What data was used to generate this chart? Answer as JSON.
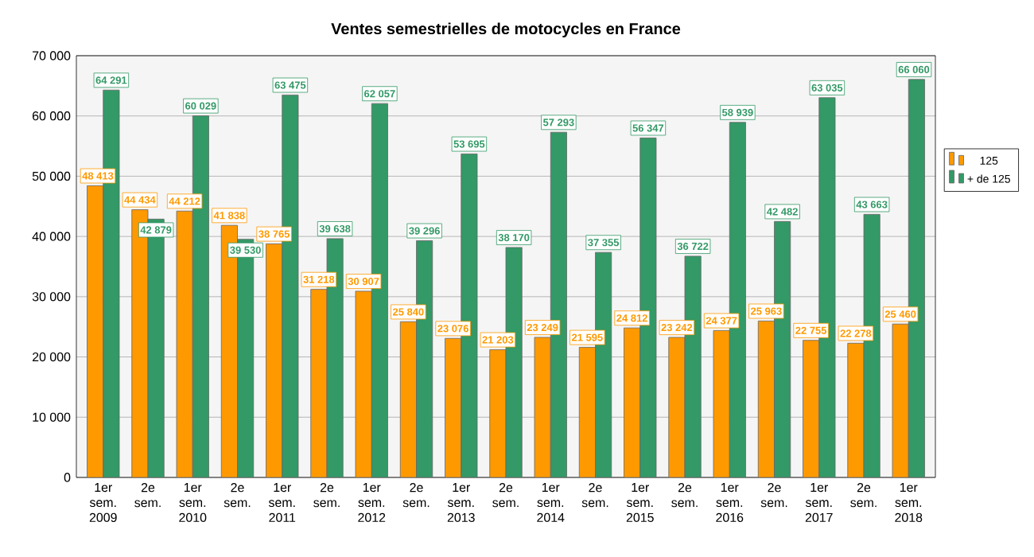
{
  "chart_data": {
    "type": "bar",
    "title": "Ventes semestrielles de motocycles en France",
    "categories": [
      "1er sem. 2009",
      "2e sem.",
      "1er sem. 2010",
      "2e sem.",
      "1er sem. 2011",
      "2e sem.",
      "1er sem. 2012",
      "2e sem.",
      "1er sem. 2013",
      "2e sem.",
      "1er sem. 2014",
      "2e sem.",
      "1er sem. 2015",
      "2e sem.",
      "1er sem. 2016",
      "2e sem.",
      "1er sem. 2017",
      "2e sem.",
      "1er sem. 2018"
    ],
    "series": [
      {
        "name": "125",
        "color": "#ff9900",
        "values": [
          48413,
          44434,
          44212,
          41838,
          38765,
          31218,
          30907,
          25840,
          23076,
          21203,
          23249,
          21595,
          24812,
          23242,
          24377,
          25963,
          22755,
          22278,
          25460
        ],
        "value_labels": [
          "48 413",
          "44 434",
          "44 212",
          "41 838",
          "38 765",
          "31 218",
          "30 907",
          "25 840",
          "23 076",
          "21 203",
          "23 249",
          "21 595",
          "24 812",
          "23 242",
          "24 377",
          "25 963",
          "22 755",
          "22 278",
          "25 460"
        ]
      },
      {
        "name": "+ de 125",
        "color": "#339966",
        "values": [
          64291,
          42879,
          60029,
          39530,
          63475,
          39638,
          62057,
          39296,
          53695,
          38170,
          57293,
          37355,
          56347,
          36722,
          58939,
          42482,
          63035,
          43663,
          66060
        ],
        "value_labels": [
          "64 291",
          "42 879",
          "60 029",
          "39 530",
          "63 475",
          "39 638",
          "62 057",
          "39 296",
          "53 695",
          "38 170",
          "57 293",
          "37 355",
          "56 347",
          "36 722",
          "58 939",
          "42 482",
          "63 035",
          "43 663",
          "66 060"
        ]
      }
    ],
    "ylim": [
      0,
      70000
    ],
    "yticks": [
      0,
      {
        "value": 10000,
        "label": "10 000"
      },
      {
        "value": 20000,
        "label": "20 000"
      },
      {
        "value": 30000,
        "label": "30 000"
      },
      {
        "value": 40000,
        "label": "40 000"
      },
      {
        "value": 50000,
        "label": "50 000"
      },
      {
        "value": 60000,
        "label": "60 000"
      },
      {
        "value": 70000,
        "label": "70 000"
      }
    ],
    "grid": "y",
    "legend": "right"
  }
}
